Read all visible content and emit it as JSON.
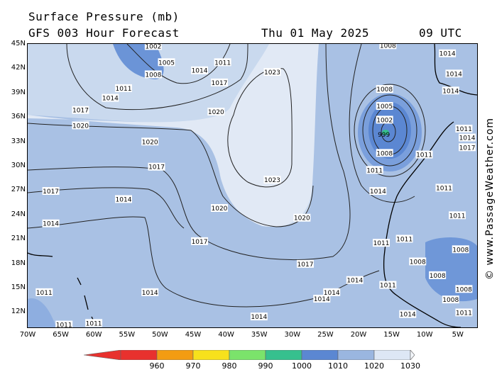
{
  "header": {
    "title": "Surface Pressure (mb)",
    "subtitle": "GFS 003 Hour Forecast",
    "date": "Thu 01 May 2025",
    "time": "09 UTC"
  },
  "credit": "© www.PassageWeather.com",
  "axes": {
    "lat_labels": [
      "45N",
      "42N",
      "39N",
      "36N",
      "33N",
      "30N",
      "27N",
      "24N",
      "21N",
      "18N",
      "15N",
      "12N"
    ],
    "lon_labels": [
      "70W",
      "65W",
      "60W",
      "55W",
      "50W",
      "45W",
      "40W",
      "35W",
      "30W",
      "25W",
      "20W",
      "15W",
      "10W",
      "5W"
    ]
  },
  "map": {
    "region": "North Atlantic / NW Africa",
    "lat_range": [
      10,
      45
    ],
    "lon_range": [
      -70,
      -2
    ],
    "high_label": "1023",
    "low_center": {
      "value": "999",
      "lat": 33.2,
      "lon": -16
    },
    "isobar_labels": [
      {
        "text": "1002",
        "lat": 44.7,
        "lon": -51
      },
      {
        "text": "1005",
        "lat": 42.7,
        "lon": -49
      },
      {
        "text": "1008",
        "lat": 41.2,
        "lon": -51
      },
      {
        "text": "1011",
        "lat": 42.7,
        "lon": -40.5
      },
      {
        "text": "1014",
        "lat": 41.7,
        "lon": -44
      },
      {
        "text": "1017",
        "lat": 40.2,
        "lon": -41
      },
      {
        "text": "1011",
        "lat": 39.5,
        "lon": -55.5
      },
      {
        "text": "1014",
        "lat": 38.3,
        "lon": -57.5
      },
      {
        "text": "1017",
        "lat": 36.8,
        "lon": -62
      },
      {
        "text": "1020",
        "lat": 36.6,
        "lon": -41.5
      },
      {
        "text": "1020",
        "lat": 34.9,
        "lon": -62
      },
      {
        "text": "1023",
        "lat": 41.5,
        "lon": -33
      },
      {
        "text": "1020",
        "lat": 32.9,
        "lon": -51.5
      },
      {
        "text": "1017",
        "lat": 29.8,
        "lon": -50.5
      },
      {
        "text": "1017",
        "lat": 26.8,
        "lon": -66.5
      },
      {
        "text": "1014",
        "lat": 25.8,
        "lon": -55.5
      },
      {
        "text": "1014",
        "lat": 22.8,
        "lon": -66.5
      },
      {
        "text": "1020",
        "lat": 24.7,
        "lon": -41
      },
      {
        "text": "1023",
        "lat": 28.2,
        "lon": -33
      },
      {
        "text": "1020",
        "lat": 23.5,
        "lon": -28.5
      },
      {
        "text": "1017",
        "lat": 20.6,
        "lon": -44
      },
      {
        "text": "1017",
        "lat": 17.8,
        "lon": -28
      },
      {
        "text": "1014",
        "lat": 15.8,
        "lon": -20.5
      },
      {
        "text": "1014",
        "lat": 14.3,
        "lon": -24
      },
      {
        "text": "1014",
        "lat": 13.5,
        "lon": -25.5
      },
      {
        "text": "1014",
        "lat": 14.3,
        "lon": -51.5
      },
      {
        "text": "1014",
        "lat": 11.3,
        "lon": -35
      },
      {
        "text": "1011",
        "lat": 14.3,
        "lon": -67.5
      },
      {
        "text": "1011",
        "lat": 10.3,
        "lon": -64.5
      },
      {
        "text": "1011",
        "lat": 10.5,
        "lon": -60
      },
      {
        "text": "1008",
        "lat": 39.4,
        "lon": -16
      },
      {
        "text": "1005",
        "lat": 37.3,
        "lon": -16
      },
      {
        "text": "1002",
        "lat": 35.6,
        "lon": -16
      },
      {
        "text": "1008",
        "lat": 31.5,
        "lon": -16
      },
      {
        "text": "1011",
        "lat": 29.4,
        "lon": -17.5
      },
      {
        "text": "1014",
        "lat": 26.8,
        "lon": -17
      },
      {
        "text": "1008",
        "lat": 44.8,
        "lon": -15.5
      },
      {
        "text": "1014",
        "lat": 43.8,
        "lon": -6.5
      },
      {
        "text": "1014",
        "lat": 41.3,
        "lon": -5.5
      },
      {
        "text": "1014",
        "lat": 39.2,
        "lon": -6
      },
      {
        "text": "1011",
        "lat": 34.5,
        "lon": -4
      },
      {
        "text": "1014",
        "lat": 33.4,
        "lon": -3.5
      },
      {
        "text": "1017",
        "lat": 32.2,
        "lon": -3.5
      },
      {
        "text": "1011",
        "lat": 31.3,
        "lon": -10
      },
      {
        "text": "1011",
        "lat": 27.2,
        "lon": -7
      },
      {
        "text": "1011",
        "lat": 23.8,
        "lon": -5
      },
      {
        "text": "1011",
        "lat": 20.9,
        "lon": -13
      },
      {
        "text": "1011",
        "lat": 20.4,
        "lon": -16.5
      },
      {
        "text": "1008",
        "lat": 19.6,
        "lon": -4.5
      },
      {
        "text": "1008",
        "lat": 18.1,
        "lon": -11
      },
      {
        "text": "1008",
        "lat": 16.4,
        "lon": -8
      },
      {
        "text": "1008",
        "lat": 14.7,
        "lon": -4
      },
      {
        "text": "1011",
        "lat": 15.2,
        "lon": -15.5
      },
      {
        "text": "1014",
        "lat": 11.6,
        "lon": -12.5
      },
      {
        "text": "1011",
        "lat": 11.8,
        "lon": -4
      },
      {
        "text": "1008",
        "lat": 13.4,
        "lon": -6
      }
    ]
  },
  "colorbar": {
    "labels": [
      "960",
      "970",
      "980",
      "990",
      "1000",
      "1010",
      "1020",
      "1030"
    ],
    "colors": [
      "#e8312e",
      "#f39c12",
      "#f7e11c",
      "#7be36b",
      "#36c08e",
      "#5b87d2",
      "#9ab6e0",
      "#dde7f5"
    ]
  }
}
